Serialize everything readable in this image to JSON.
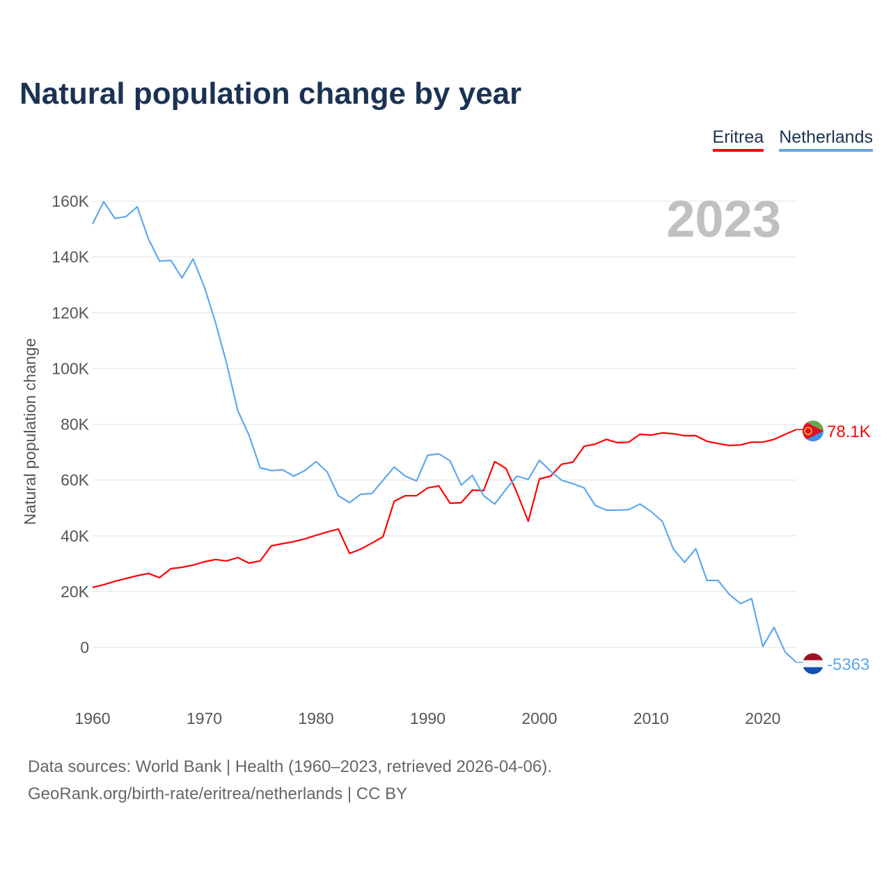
{
  "chart_data": {
    "type": "line",
    "title": "Natural population change by year",
    "ylabel": "Natural population change",
    "xlabel": "",
    "year_label": "2023",
    "xlim": [
      1960,
      2023
    ],
    "ylim": [
      -15000,
      170000
    ],
    "x_ticks": [
      1960,
      1970,
      1980,
      1990,
      2000,
      2010,
      2020
    ],
    "y_ticks": [
      0,
      20000,
      40000,
      60000,
      80000,
      100000,
      120000,
      140000,
      160000
    ],
    "y_tick_labels": [
      "0",
      "20K",
      "40K",
      "60K",
      "80K",
      "100K",
      "120K",
      "140K",
      "160K"
    ],
    "grid": true,
    "legend": "top-right",
    "x": [
      1960,
      1961,
      1962,
      1963,
      1964,
      1965,
      1966,
      1967,
      1968,
      1969,
      1970,
      1971,
      1972,
      1973,
      1974,
      1975,
      1976,
      1977,
      1978,
      1979,
      1980,
      1981,
      1982,
      1983,
      1984,
      1985,
      1986,
      1987,
      1988,
      1989,
      1990,
      1991,
      1992,
      1993,
      1994,
      1995,
      1996,
      1997,
      1998,
      1999,
      2000,
      2001,
      2002,
      2003,
      2004,
      2005,
      2006,
      2007,
      2008,
      2009,
      2010,
      2011,
      2012,
      2013,
      2014,
      2015,
      2016,
      2017,
      2018,
      2019,
      2020,
      2021,
      2022,
      2023
    ],
    "series": [
      {
        "name": "Eritrea",
        "color": "#ff0000",
        "end_label": "78.1K",
        "values": [
          21500,
          22500,
          23700,
          24700,
          25700,
          26500,
          25000,
          28200,
          28700,
          29500,
          30700,
          31500,
          31000,
          32200,
          30200,
          31000,
          36400,
          37200,
          37900,
          38900,
          40200,
          41400,
          42400,
          33700,
          35200,
          37400,
          39700,
          52400,
          54400,
          54400,
          57200,
          57900,
          51700,
          51900,
          56400,
          56200,
          66600,
          64200,
          55400,
          45200,
          60400,
          61400,
          65700,
          66400,
          72100,
          72900,
          74600,
          73400,
          73600,
          76400,
          76100,
          76900,
          76600,
          75900,
          75900,
          73900,
          73100,
          72400,
          72600,
          73600,
          73600,
          74600,
          76400,
          78100
        ]
      },
      {
        "name": "Netherlands",
        "color": "#5ea8ec",
        "end_label": "-5363",
        "values": [
          151800,
          159800,
          153800,
          154500,
          158000,
          146500,
          138500,
          138800,
          132500,
          139300,
          129300,
          116600,
          101800,
          84900,
          76100,
          64400,
          63400,
          63700,
          61400,
          63400,
          66600,
          62900,
          54400,
          51900,
          54900,
          55200,
          59900,
          64700,
          61400,
          59700,
          68900,
          69400,
          66900,
          58200,
          61700,
          54400,
          51400,
          56700,
          61400,
          60200,
          67100,
          63200,
          59900,
          58700,
          57200,
          50900,
          49200,
          49200,
          49400,
          51400,
          48700,
          45200,
          35200,
          30500,
          35400,
          24000,
          24000,
          19000,
          15700,
          17500,
          300,
          7200,
          -1700,
          -5363
        ]
      }
    ]
  },
  "footer": {
    "line1": "Data sources: World Bank | Health (1960–2023, retrieved 2026-04-06).",
    "line2": "GeoRank.org/birth-rate/eritrea/netherlands | CC BY"
  }
}
